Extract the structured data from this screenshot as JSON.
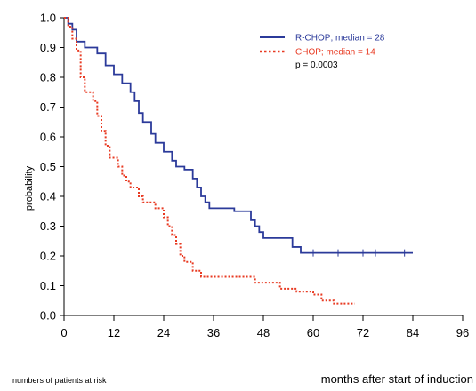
{
  "chart_data": {
    "type": "line",
    "step": true,
    "ylabel": "probability",
    "xlabel": "months after start of induction",
    "footer_note": "numbers of patients at risk",
    "p_value": "p = 0.0003",
    "xlim": [
      0,
      96
    ],
    "ylim": [
      0.0,
      1.0
    ],
    "x_ticks": [
      "0",
      "12",
      "24",
      "36",
      "48",
      "60",
      "72",
      "84",
      "96"
    ],
    "y_ticks": [
      "0.0",
      "0.1",
      "0.2",
      "0.3",
      "0.4",
      "0.5",
      "0.6",
      "0.7",
      "0.8",
      "0.9",
      "1.0"
    ],
    "legend_position": "top-right",
    "series": [
      {
        "name": "R-CHOP; median = 28",
        "color": "#2b3a9a",
        "line_style": "solid",
        "points": [
          [
            0,
            1.0
          ],
          [
            1,
            0.98
          ],
          [
            2,
            0.96
          ],
          [
            3,
            0.92
          ],
          [
            5,
            0.9
          ],
          [
            8,
            0.88
          ],
          [
            10,
            0.84
          ],
          [
            12,
            0.81
          ],
          [
            14,
            0.78
          ],
          [
            16,
            0.75
          ],
          [
            17,
            0.72
          ],
          [
            18,
            0.68
          ],
          [
            19,
            0.65
          ],
          [
            21,
            0.61
          ],
          [
            22,
            0.58
          ],
          [
            24,
            0.55
          ],
          [
            26,
            0.52
          ],
          [
            27,
            0.5
          ],
          [
            29,
            0.49
          ],
          [
            31,
            0.46
          ],
          [
            32,
            0.43
          ],
          [
            33,
            0.4
          ],
          [
            34,
            0.38
          ],
          [
            35,
            0.36
          ],
          [
            41,
            0.35
          ],
          [
            45,
            0.32
          ],
          [
            46,
            0.3
          ],
          [
            47,
            0.28
          ],
          [
            48,
            0.26
          ],
          [
            55,
            0.23
          ],
          [
            57,
            0.21
          ],
          [
            84,
            0.21
          ]
        ],
        "censor_x": [
          60,
          66,
          72,
          75,
          82
        ]
      },
      {
        "name": "CHOP; median = 14",
        "color": "#e83a22",
        "line_style": "dotted",
        "points": [
          [
            0,
            1.0
          ],
          [
            1,
            0.97
          ],
          [
            2,
            0.93
          ],
          [
            3,
            0.89
          ],
          [
            4,
            0.8
          ],
          [
            5,
            0.75
          ],
          [
            7,
            0.72
          ],
          [
            8,
            0.67
          ],
          [
            9,
            0.62
          ],
          [
            10,
            0.57
          ],
          [
            11,
            0.53
          ],
          [
            13,
            0.5
          ],
          [
            14,
            0.47
          ],
          [
            15,
            0.45
          ],
          [
            16,
            0.43
          ],
          [
            18,
            0.4
          ],
          [
            19,
            0.38
          ],
          [
            22,
            0.36
          ],
          [
            24,
            0.33
          ],
          [
            25,
            0.3
          ],
          [
            26,
            0.27
          ],
          [
            27,
            0.24
          ],
          [
            28,
            0.2
          ],
          [
            29,
            0.18
          ],
          [
            31,
            0.15
          ],
          [
            33,
            0.13
          ],
          [
            46,
            0.11
          ],
          [
            52,
            0.09
          ],
          [
            56,
            0.08
          ],
          [
            60,
            0.07
          ],
          [
            62,
            0.05
          ],
          [
            65,
            0.04
          ],
          [
            70,
            0.04
          ]
        ],
        "censor_x": []
      }
    ]
  }
}
